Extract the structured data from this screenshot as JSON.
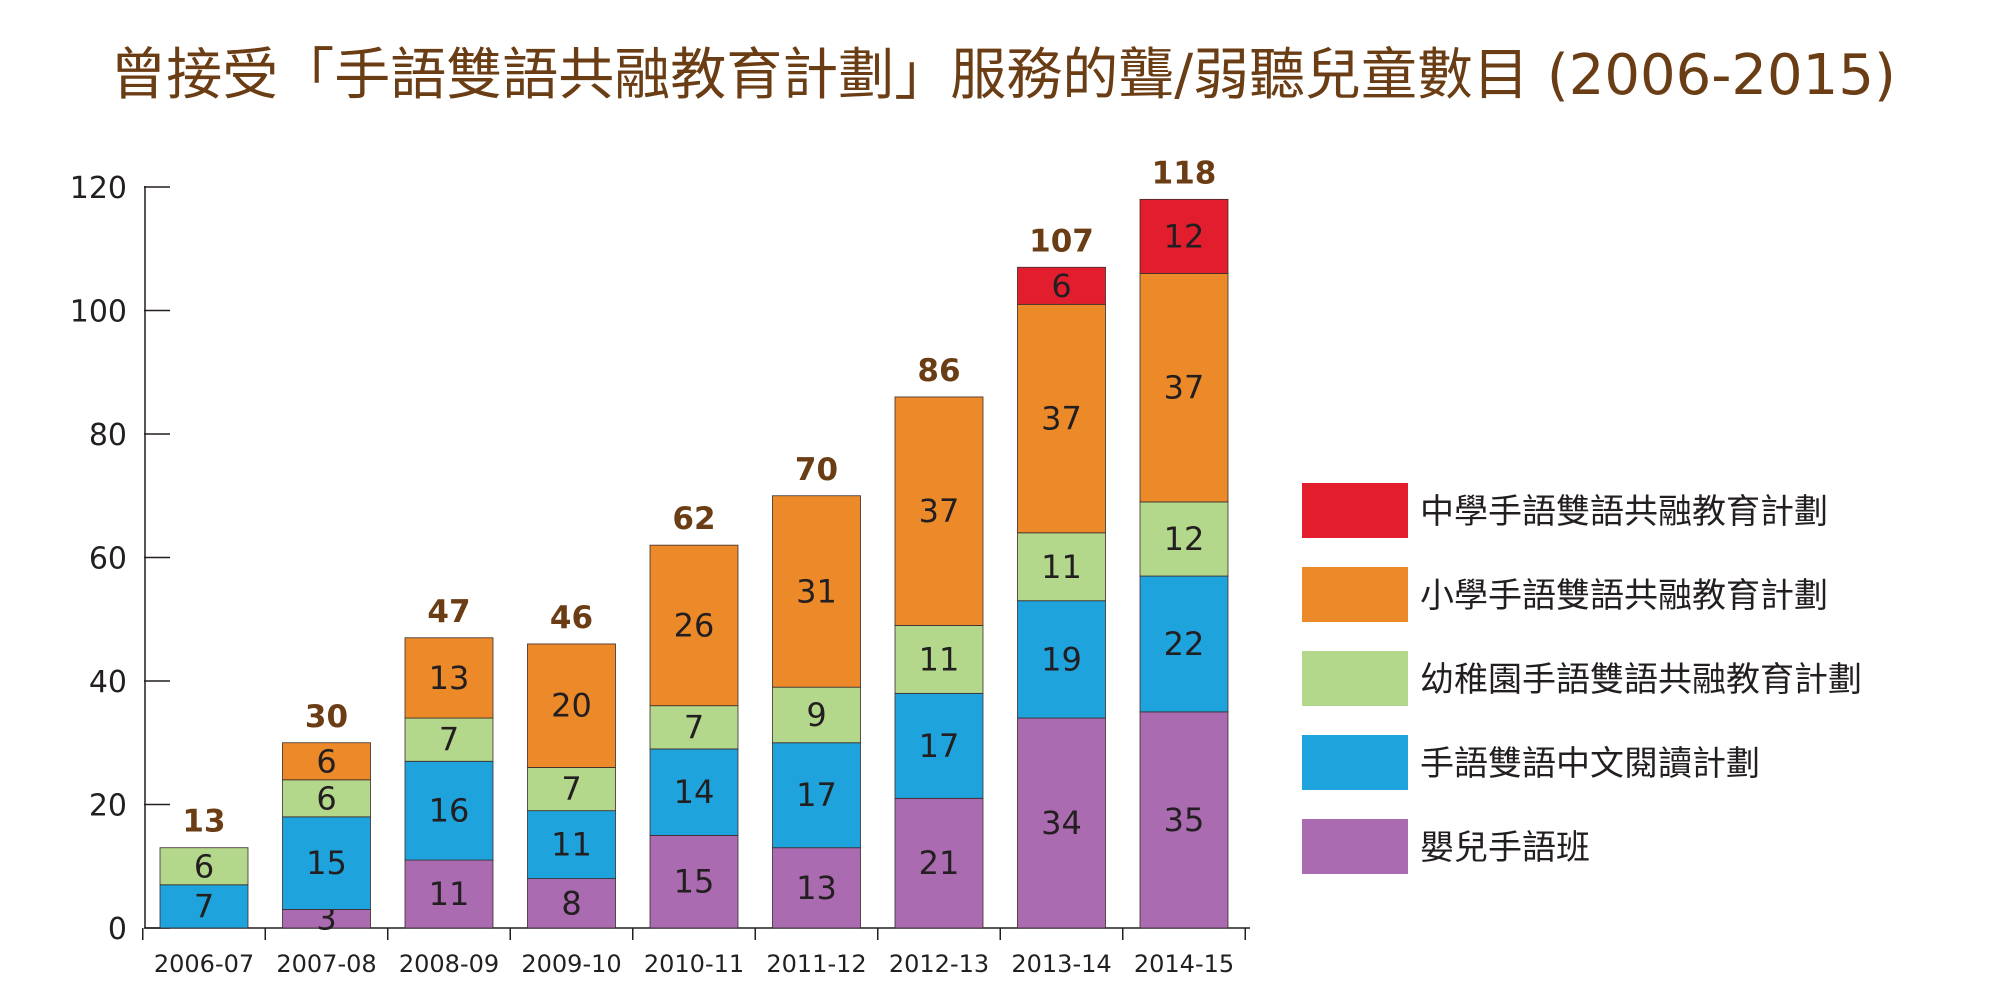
{
  "chart_data": {
    "type": "bar",
    "stacked": true,
    "title": "曾接受「手語雙語共融教育計劃」服務的聾/弱聽兒童數目 (2006-2015)",
    "categories": [
      "2006-07",
      "2007-08",
      "2008-09",
      "2009-10",
      "2010-11",
      "2011-12",
      "2012-13",
      "2013-14",
      "2014-15"
    ],
    "ylim": [
      0,
      120
    ],
    "yticks": [
      0,
      20,
      40,
      60,
      80,
      100,
      120
    ],
    "totals": [
      13,
      30,
      47,
      46,
      62,
      70,
      86,
      107,
      118
    ],
    "legend_position": "right",
    "series": [
      {
        "name": "嬰兒手語班",
        "color": "#aa6bb0",
        "values": [
          0,
          3,
          11,
          8,
          15,
          13,
          21,
          34,
          35
        ]
      },
      {
        "name": "手語雙語中文閱讀計劃",
        "color": "#1fa3dc",
        "values": [
          7,
          15,
          16,
          11,
          14,
          17,
          17,
          19,
          22
        ]
      },
      {
        "name": "幼稚園手語雙語共融教育計劃",
        "color": "#b3d88b",
        "values": [
          6,
          6,
          7,
          7,
          7,
          9,
          11,
          11,
          12
        ]
      },
      {
        "name": "小學手語雙語共融教育計劃",
        "color": "#ec8a2a",
        "values": [
          0,
          6,
          13,
          20,
          26,
          31,
          37,
          37,
          37
        ]
      },
      {
        "name": "中學手語雙語共融教育計劃",
        "color": "#e21e2e",
        "values": [
          0,
          0,
          0,
          0,
          0,
          0,
          0,
          6,
          12
        ]
      }
    ]
  }
}
